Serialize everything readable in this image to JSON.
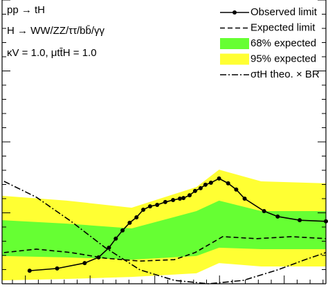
{
  "chart_data": {
    "type": "line",
    "annotations": [
      "pp → tH",
      "H → WW/ZZ/ττ/bb̄/γγ",
      "κV = 1.0, μtt̄H = 1.0"
    ],
    "xlim": [
      0,
      100
    ],
    "ylim": [
      0,
      100
    ],
    "series": [
      {
        "name": "Observed limit",
        "color": "#000000",
        "style": "solid-markers",
        "x": [
          8.5,
          17,
          25.5,
          29.8,
          33,
          35.1,
          37.2,
          39.4,
          41.5,
          43.6,
          45.7,
          47.9,
          50.4,
          52.8,
          54.9,
          56,
          57.9,
          59.6,
          61.3,
          62.8,
          64.5,
          67,
          69.8,
          72.3,
          74.9,
          80.9,
          85.1,
          91.9,
          100
        ],
        "values": [
          4.6,
          5.4,
          7.3,
          9.3,
          12.7,
          15.9,
          18.8,
          21.5,
          23.4,
          26.1,
          27.3,
          27.8,
          28.8,
          29.5,
          30,
          30.2,
          31.2,
          32.7,
          33.7,
          34.9,
          35.6,
          37.1,
          35.4,
          33.2,
          30,
          25.6,
          23.7,
          22.4,
          22
        ]
      },
      {
        "name": "Expected limit",
        "color": "#000000",
        "style": "dashed",
        "x": [
          0.6,
          10.6,
          21.3,
          31.9,
          42.6,
          53.2,
          59.6,
          68.1,
          78.7,
          89.4,
          100
        ],
        "values": [
          11,
          12.2,
          11,
          9,
          8,
          8.5,
          11,
          16.6,
          15.9,
          16.6,
          15.9
        ]
      },
      {
        "name": "68% expected",
        "color": "#66ff33",
        "style": "band",
        "x": [
          0,
          20,
          40,
          60,
          67,
          80,
          100
        ],
        "low": [
          9.8,
          9.3,
          8.5,
          9.8,
          12.7,
          12.2,
          12.2
        ],
        "high": [
          22.4,
          21.2,
          19.5,
          25.6,
          29.3,
          25.6,
          25.6
        ]
      },
      {
        "name": "95% expected",
        "color": "#ffff33",
        "style": "band",
        "x": [
          0,
          20,
          40,
          60,
          67,
          80,
          100
        ],
        "low": [
          1.2,
          1.7,
          2.4,
          3.7,
          7.3,
          6.1,
          6.1
        ],
        "high": [
          31,
          29.3,
          26.8,
          34.1,
          40.2,
          36.1,
          35.4
        ]
      },
      {
        "name": "σtH theo. × BR",
        "color": "#000000",
        "style": "dashdot",
        "x": [
          0.6,
          10.6,
          21.3,
          31.9,
          42.6,
          53.2,
          63.8,
          74.5,
          85.1,
          93.6,
          100
        ],
        "values": [
          36.1,
          30.5,
          22,
          12.7,
          4.9,
          1.2,
          0,
          1.2,
          4.9,
          8.5,
          11
        ]
      }
    ]
  }
}
